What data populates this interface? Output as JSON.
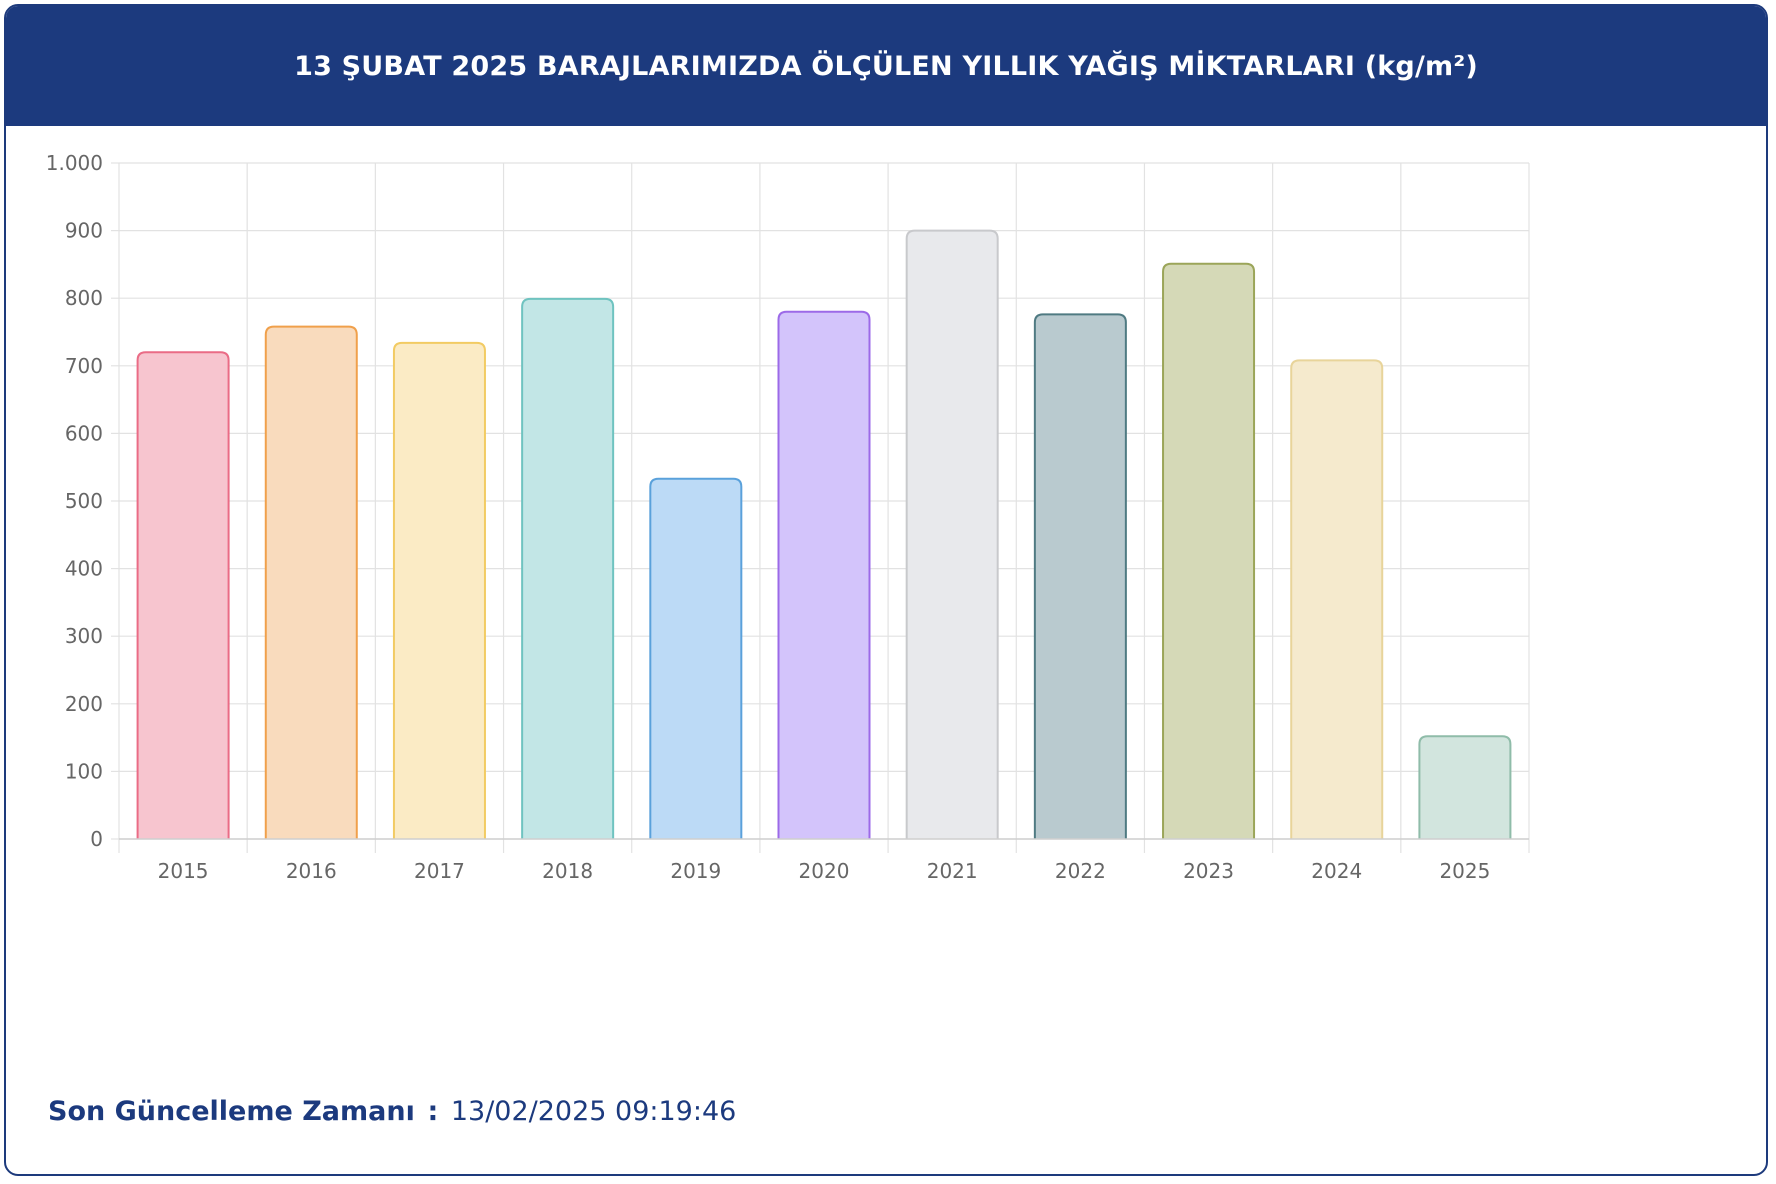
{
  "header": {
    "title": "13 ŞUBAT 2025 BARAJLARIMIZDA ÖLÇÜLEN YILLIK YAĞIŞ MİKTARLARI (kg/m²)"
  },
  "footer": {
    "label": "Son Güncelleme Zamanı",
    "separator": ":",
    "value": "13/02/2025 09:19:46"
  },
  "chart_data": {
    "type": "bar",
    "title": "13 ŞUBAT 2025 BARAJLARIMIZDA ÖLÇÜLEN YILLIK YAĞIŞ MİKTARLARI (kg/m²)",
    "xlabel": "",
    "ylabel": "",
    "ylim": [
      0,
      1000
    ],
    "yticks": [
      0,
      100,
      200,
      300,
      400,
      500,
      600,
      700,
      800,
      900,
      1000
    ],
    "ytick_labels": [
      "0",
      "100",
      "200",
      "300",
      "400",
      "500",
      "600",
      "700",
      "800",
      "900",
      "1.000"
    ],
    "grid": true,
    "legend": "none",
    "categories": [
      "2015",
      "2016",
      "2017",
      "2018",
      "2019",
      "2020",
      "2021",
      "2022",
      "2023",
      "2024",
      "2025"
    ],
    "values": [
      720,
      758,
      734,
      799,
      533,
      780,
      900,
      776,
      851,
      708,
      152
    ],
    "fill_colors": [
      "#f7c5cf",
      "#f9dbbd",
      "#fbebc5",
      "#c2e6e6",
      "#bcdaf6",
      "#d3c4fb",
      "#e8e9ec",
      "#b9cacf",
      "#d5d9b7",
      "#f5eacd",
      "#d2e5de"
    ],
    "stroke_colors": [
      "#ea6c86",
      "#f0a04b",
      "#f2cb63",
      "#6fc3c0",
      "#5aa1db",
      "#9c6ae8",
      "#c8c9cc",
      "#4f7a82",
      "#9ba559",
      "#e8d49a",
      "#8fbca9"
    ]
  }
}
